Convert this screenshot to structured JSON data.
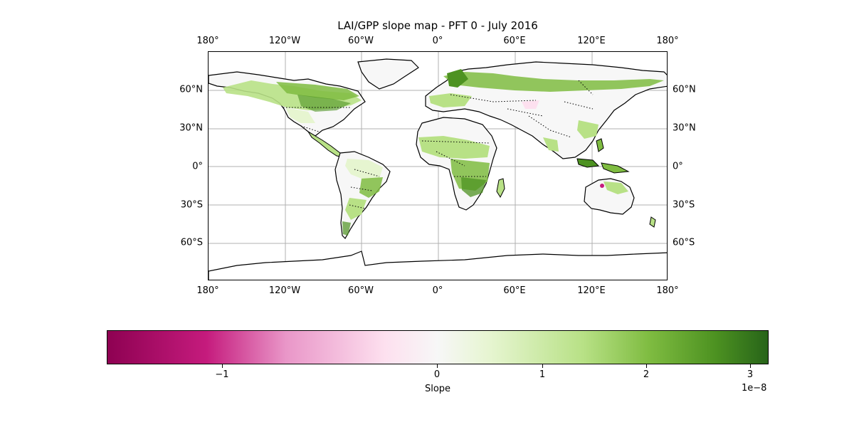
{
  "title": "LAI/GPP slope map - PFT 0 - July 2016",
  "map": {
    "projection": "PlateCarree",
    "lon_range": [
      -180,
      180
    ],
    "lat_range": [
      -90,
      90
    ],
    "gridlines": true,
    "coastlines": true,
    "country_borders": "dotted",
    "lon_tick_labels": [
      "180°",
      "120°W",
      "60°W",
      "0°",
      "60°E",
      "120°E",
      "180°"
    ],
    "lat_tick_labels": [
      "60°N",
      "30°N",
      "0°",
      "30°S",
      "60°S"
    ]
  },
  "colorbar": {
    "label": "Slope",
    "colormap": "PiYG",
    "range": [
      -3.1e-08,
      3.1e-08
    ],
    "visible_min": -1.6e-08,
    "visible_max": 3.15e-08,
    "tick_labels": [
      "−1",
      "0",
      "1",
      "2",
      "3"
    ],
    "offset_text": "1e−8",
    "colors": {
      "min": "#8e0152",
      "low": "#c51b7d",
      "pink": "#f1b6da",
      "zero": "#f7f7f7",
      "lightgreen": "#e6f5d0",
      "green": "#b8e186",
      "mid": "#7fbc41",
      "dark": "#4d9221",
      "max": "#276419"
    }
  }
}
